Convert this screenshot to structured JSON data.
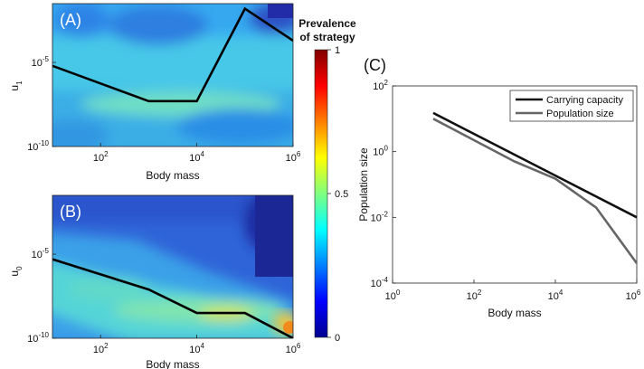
{
  "chart_data": [
    {
      "panel": "(A)",
      "type": "heatmap",
      "xlabel": "Body mass",
      "ylabel": "u1",
      "ylabel_base": "u",
      "ylabel_sub": "1",
      "x_scale": "log",
      "y_scale": "log",
      "x_ticks": [
        {
          "base": "10",
          "exp": "2"
        },
        {
          "base": "10",
          "exp": "4"
        },
        {
          "base": "10",
          "exp": "6"
        }
      ],
      "y_ticks": [
        {
          "base": "10",
          "exp": "-5"
        },
        {
          "base": "10",
          "exp": "-10"
        }
      ],
      "xlim": [
        10,
        1000000
      ],
      "ylim_log10": [
        -10,
        -1.5
      ],
      "line": {
        "x": [
          10,
          1000,
          10000,
          100000,
          1000000
        ],
        "y_log10": [
          -5.2,
          -7.3,
          -7.3,
          -1.8,
          -3.7
        ]
      }
    },
    {
      "panel": "(B)",
      "type": "heatmap",
      "xlabel": "Body mass",
      "ylabel": "u0",
      "ylabel_base": "u",
      "ylabel_sub": "0",
      "x_scale": "log",
      "y_scale": "log",
      "x_ticks": [
        {
          "base": "10",
          "exp": "2"
        },
        {
          "base": "10",
          "exp": "4"
        },
        {
          "base": "10",
          "exp": "6"
        }
      ],
      "y_ticks": [
        {
          "base": "10",
          "exp": "-5"
        },
        {
          "base": "10",
          "exp": "-10"
        }
      ],
      "xlim": [
        10,
        1000000
      ],
      "ylim_log10": [
        -10,
        -1.5
      ],
      "line": {
        "x": [
          10,
          1000,
          10000,
          100000,
          1000000
        ],
        "y_log10": [
          -5.3,
          -7.1,
          -8.5,
          -8.5,
          -10
        ]
      }
    },
    {
      "panel": "(C)",
      "type": "line",
      "xlabel": "Body mass",
      "ylabel": "Population size",
      "x_scale": "log",
      "y_scale": "log",
      "x_ticks": [
        {
          "base": "10",
          "exp": "0"
        },
        {
          "base": "10",
          "exp": "2"
        },
        {
          "base": "10",
          "exp": "4"
        },
        {
          "base": "10",
          "exp": "6"
        }
      ],
      "y_ticks": [
        {
          "base": "10",
          "exp": "2"
        },
        {
          "base": "10",
          "exp": "0"
        },
        {
          "base": "10",
          "exp": "-2"
        },
        {
          "base": "10",
          "exp": "-4"
        }
      ],
      "xlim": [
        1,
        1000000
      ],
      "ylim": [
        0.0001,
        100
      ],
      "legend": "top-right",
      "series": [
        {
          "name": "Carrying capacity",
          "color": "#111111",
          "x": [
            10,
            1000000
          ],
          "y": [
            15,
            0.01
          ]
        },
        {
          "name": "Population size",
          "color": "#666666",
          "x": [
            10,
            1000,
            10000,
            100000,
            1000000
          ],
          "y": [
            10,
            0.5,
            0.15,
            0.02,
            0.0004
          ]
        }
      ]
    }
  ],
  "colorbar": {
    "title_line1": "Prevalence",
    "title_line2": "of strategy",
    "ticks": [
      "1",
      "0.5",
      "0"
    ],
    "tick_values": [
      1,
      0.5,
      0
    ],
    "colormap": "jet"
  }
}
